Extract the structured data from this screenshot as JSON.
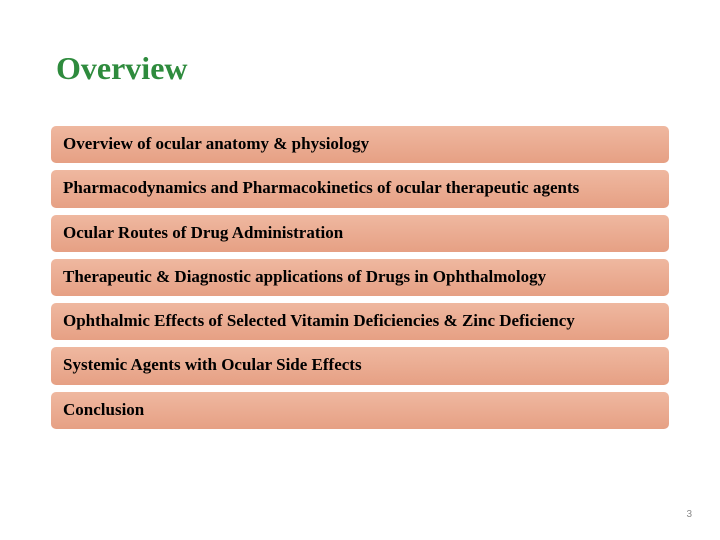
{
  "title": {
    "text": "Overview",
    "color": "#2e8b3d"
  },
  "items": [
    {
      "label": "Overview of ocular anatomy  & physiology"
    },
    {
      "label": "Pharmacodynamics and Pharmacokinetics of ocular therapeutic agents"
    },
    {
      "label": "Ocular Routes of Drug Administration"
    },
    {
      "label": "Therapeutic & Diagnostic applications of Drugs in Ophthalmology"
    },
    {
      "label": "Ophthalmic Effects of Selected Vitamin Deficiencies & Zinc Deficiency"
    },
    {
      "label": "Systemic Agents with Ocular Side Effects"
    },
    {
      "label": "Conclusion"
    }
  ],
  "item_style": {
    "gradient_top": "#efb8a0",
    "gradient_bottom": "#e6a084",
    "border_color": "#ffffff",
    "text_color": "#000000"
  },
  "page_number": "3",
  "background_color": "#ffffff"
}
